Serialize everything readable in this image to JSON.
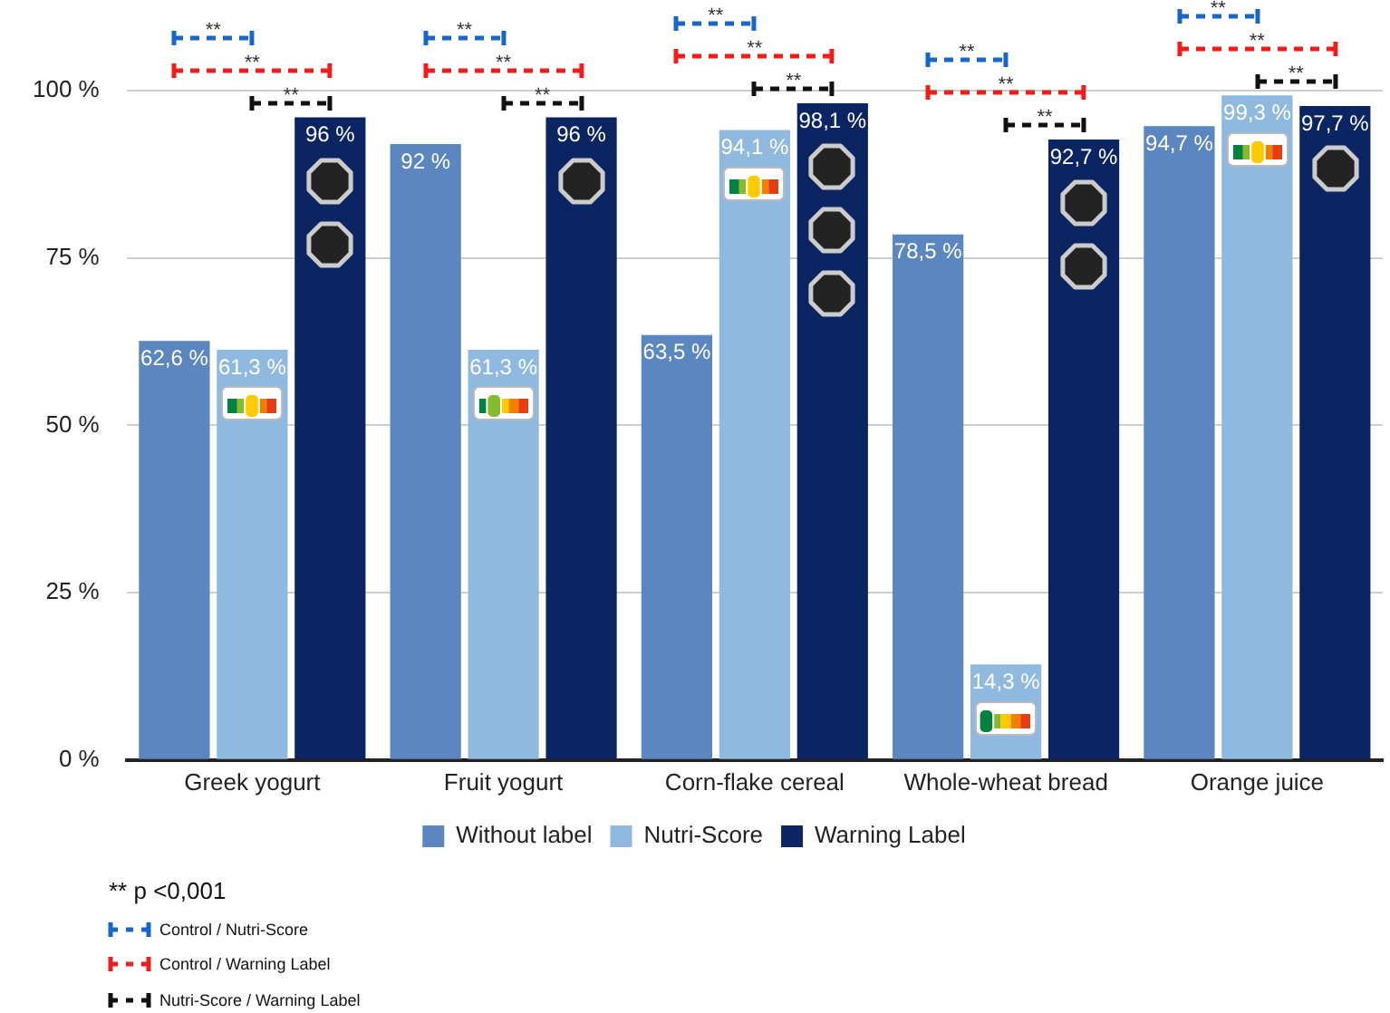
{
  "chart_data": {
    "type": "bar",
    "categories": [
      "Greek yogurt",
      "Fruit yogurt",
      "Corn-flake cereal",
      "Whole-wheat bread",
      "Orange juice"
    ],
    "series": [
      {
        "name": "Without label",
        "color": "#5b86bf",
        "values": [
          62.6,
          92,
          63.5,
          78.5,
          94.7
        ],
        "value_labels": [
          "62,6 %",
          "92 %",
          "63,5 %",
          "78,5 %",
          "94,7 %"
        ]
      },
      {
        "name": "Nutri-Score",
        "color": "#8fb9de",
        "values": [
          61.3,
          61.3,
          94.1,
          14.3,
          99.3
        ],
        "value_labels": [
          "61,3 %",
          "61,3 %",
          "94,1 %",
          "14,3 %",
          "99,3 %"
        ]
      },
      {
        "name": "Warning Label",
        "color": "#0b2462",
        "values": [
          96,
          96,
          98.1,
          92.7,
          97.7
        ],
        "value_labels": [
          "96 %",
          "96 %",
          "98,1 %",
          "92,7 %",
          "97,7 %"
        ]
      }
    ],
    "ylim": [
      0,
      100
    ],
    "yticks": [
      {
        "value": 0,
        "label": "0 %"
      },
      {
        "value": 25,
        "label": "25 %"
      },
      {
        "value": 50,
        "label": "50 %"
      },
      {
        "value": 75,
        "label": "75 %"
      },
      {
        "value": 100,
        "label": "100 %"
      }
    ],
    "grid": "y",
    "legend": "bottom",
    "annotations": [
      "**",
      "**",
      "**",
      "**",
      "**",
      "**",
      "**",
      "**",
      "**",
      "**",
      "**",
      "**",
      "**",
      "**",
      "**",
      "** p <0,001",
      "Control / Nutri-Score",
      "Control / Warning Label",
      "Nutri-Score / Warning Label"
    ]
  }
}
